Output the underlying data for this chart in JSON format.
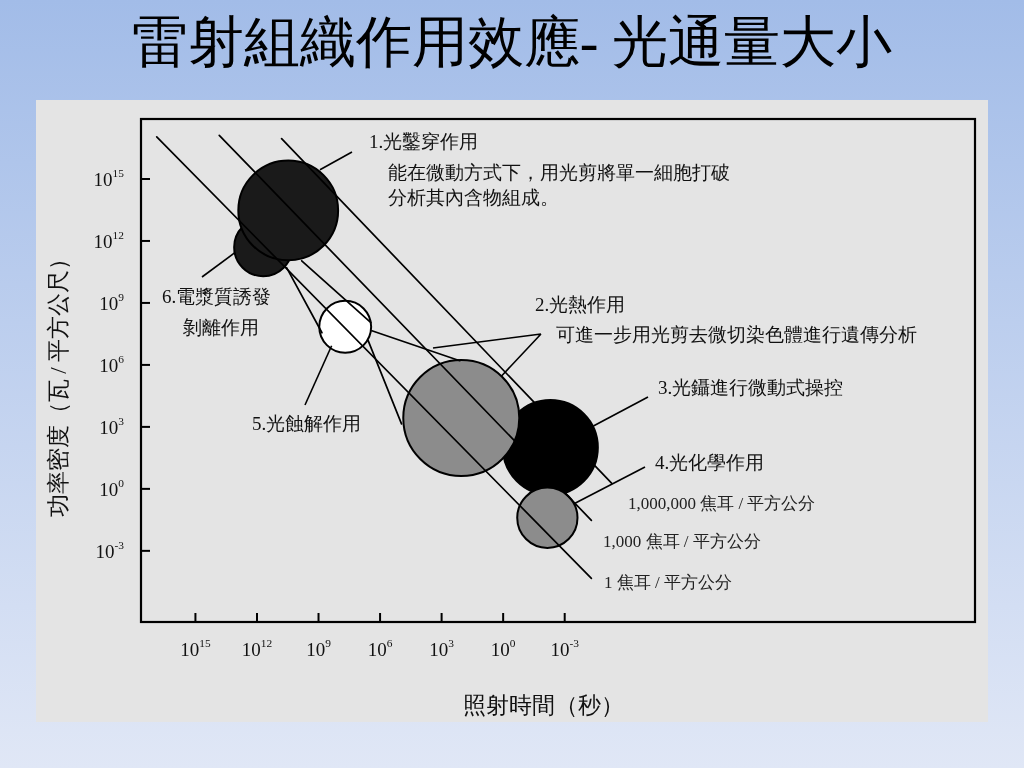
{
  "chart_data": {
    "type": "bubble",
    "title": "雷射組織作用效應- 光通量大小",
    "xlabel": "照射時間（秒）",
    "ylabel": "功率密度（瓦 / 平方公尺）",
    "log": "xy",
    "xlim": [
      4.5e+17,
      1e-23
    ],
    "xticks": [
      {
        "value": 1000000000000000.0,
        "label": "10$^{15}$"
      },
      {
        "value": 1000000000000.0,
        "label": "10$^{12}$"
      },
      {
        "value": 1000000000.0,
        "label": "10$^{9}$"
      },
      {
        "value": 1000000.0,
        "label": "10$^{6}$"
      },
      {
        "value": 1000,
        "label": "10$^{3}$"
      },
      {
        "value": 1,
        "label": "10$^{0}$"
      },
      {
        "value": 0.001,
        "label": "10$^{-3}$"
      }
    ],
    "ylim": [
      3.6e-07,
      8e+17
    ],
    "yticks": [
      {
        "value": 1000000000000000.0,
        "label": "10$^{15}$"
      },
      {
        "value": 1000000000000.0,
        "label": "10$^{12}$"
      },
      {
        "value": 1000000000.0,
        "label": "10$^{9}$"
      },
      {
        "value": 1000000.0,
        "label": "10$^{6}$"
      },
      {
        "value": 1000,
        "label": "10$^{3}$"
      },
      {
        "value": 1,
        "label": "10$^{0}$"
      },
      {
        "value": 0.001,
        "label": "10$^{-3}$"
      }
    ],
    "series": [
      {
        "x": [
          0.005,
          110,
          0.007,
          500000000000.0,
          30000000000.0,
          50000000.0
        ],
        "values": [
          100,
          2700,
          0.04,
          500000000000.0,
          30000000000000.0,
          70000000.0
        ],
        "sizes": [
          0.67,
          1,
          0.27,
          0.25,
          0.74,
          0.2
        ],
        "colors": [
          "#000000",
          "#8c8c8c",
          "#8c8c8c",
          "#1a1a1a",
          "#1a1a1a",
          "#ffffff"
        ]
      },
      {
        "type": "line",
        "name": "1 焦耳 / 平方公分",
        "color": "#000000",
        "x": [
          7.7e+16,
          5e-05
        ],
        "values": [
          1.1e+17,
          4.7e-05
        ]
      },
      {
        "type": "line",
        "name": "1,000 焦耳 / 平方公分",
        "color": "#000000",
        "x": [
          69000000000000.0,
          5e-05
        ],
        "values": [
          1.3e+17,
          0.03
        ]
      },
      {
        "type": "line",
        "name": "1,000,000 焦耳 / 平方公分",
        "color": "#000000",
        "x": [
          63000000000.0,
          5.2e-06
        ],
        "values": [
          8.9e+16,
          1.9
        ]
      },
      {
        "type": "line",
        "color": "#000000",
        "x": [
          36000000000.0,
          680000000.0
        ],
        "values": [
          51000000000.0,
          36000000.0
        ]
      },
      {
        "type": "line",
        "color": "#000000",
        "x": [
          6600000000.0,
          2800000.0
        ],
        "values": [
          110000000000.0,
          110000000.0
        ]
      },
      {
        "type": "line",
        "color": "#000000",
        "x": [
          2500000.0,
          130
        ],
        "values": [
          45000000.0,
          1600000.0
        ]
      },
      {
        "type": "line",
        "color": "#000000",
        "x": [
          3800000.0,
          90000.0
        ],
        "values": [
          15000000.0,
          1400
        ]
      }
    ],
    "annotations": [
      {
        "text": "1.光鑿穿作用",
        "x": 850000000.0,
        "y": 2800000000000000.0
      },
      "能在微動方式下，用光剪將單一細胞打破分析其內含物組成。",
      {
        "text": "2.光熱作用",
        "x": 1.2,
        "y": 290000.0
      },
      "可進一步用光剪去微切染色體進行遺傳分析",
      {
        "text": "3.光鑷進行微動式操控",
        "x": 4e-05,
        "y": 1100
      },
      {
        "text": "4.光化學作用",
        "x": 0.00035,
        "y": 0.19
      },
      {
        "text": "5.光蝕解作用",
        "x": 230000000.0,
        "y": 8500000.0
      },
      {
        "text": "6.電漿質誘發剝離作用",
        "x": 12000000000000.0,
        "y": 270000000000.0
      }
    ]
  }
}
